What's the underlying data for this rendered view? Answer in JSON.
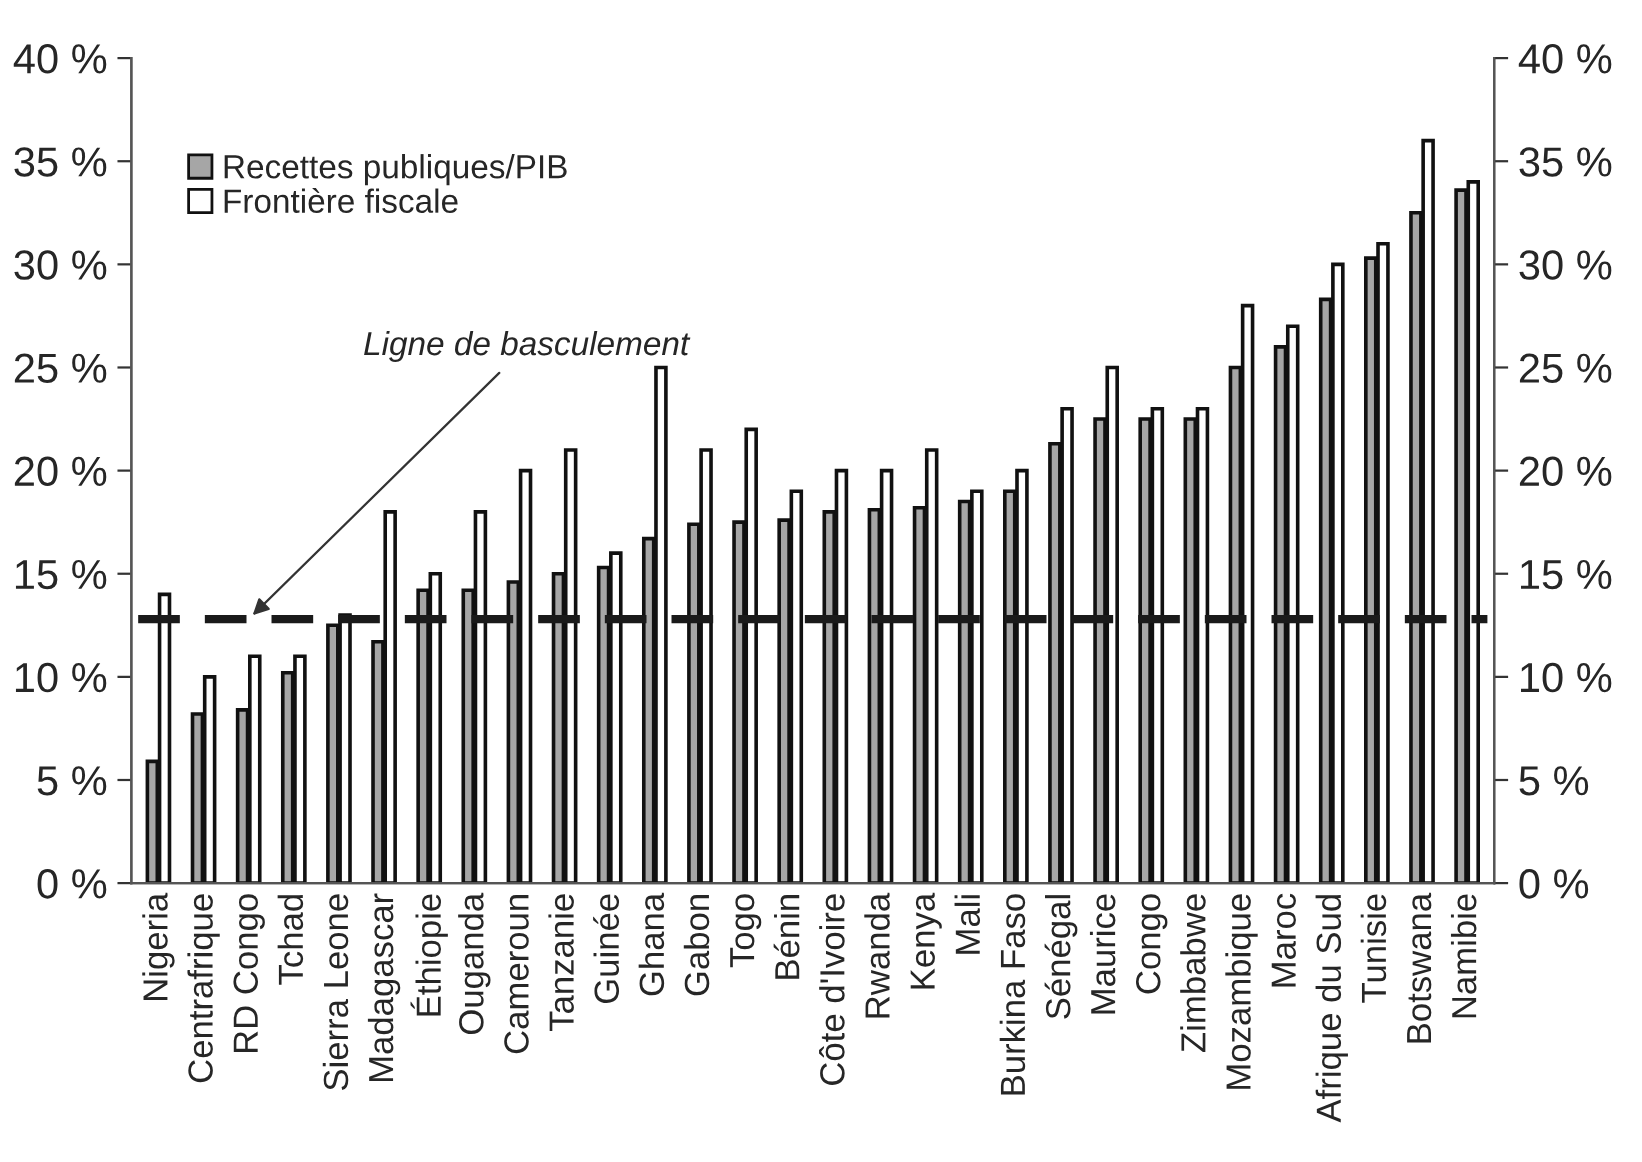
{
  "chart_data": {
    "type": "bar",
    "categories": [
      "Nigeria",
      "Centrafrique",
      "RD Congo",
      "Tchad",
      "Sierra Leone",
      "Madagascar",
      "Éthiopie",
      "Ouganda",
      "Cameroun",
      "Tanzanie",
      "Guinée",
      "Ghana",
      "Gabon",
      "Togo",
      "Bénin",
      "Côte d'Ivoire",
      "Rwanda",
      "Kenya",
      "Mali",
      "Burkina Faso",
      "Sénégal",
      "Maurice",
      "Congo",
      "Zimbabwe",
      "Mozambique",
      "Maroc",
      "Afrique du Sud",
      "Tunisie",
      "Botswana",
      "Namibie"
    ],
    "series": [
      {
        "name": "Recettes publiques/PIB",
        "color": "#a6a6a6",
        "values": [
          5.9,
          8.2,
          8.4,
          10.2,
          12.5,
          11.7,
          14.2,
          14.2,
          14.6,
          15,
          15.3,
          16.7,
          17.4,
          17.5,
          17.6,
          18,
          18.1,
          18.2,
          18.5,
          19,
          21.3,
          22.5,
          22.5,
          22.5,
          25,
          26,
          28.3,
          30.3,
          32.5,
          33.6
        ]
      },
      {
        "name": "Frontière fiscale",
        "color": "#ffffff",
        "values": [
          14,
          10,
          11,
          11,
          13,
          18,
          15,
          18,
          20,
          21,
          16,
          25,
          21,
          22,
          19,
          20,
          20,
          21,
          19,
          20,
          23,
          25,
          23,
          23,
          28,
          27,
          30,
          31,
          36,
          34
        ]
      }
    ],
    "ylim": [
      0,
      40
    ],
    "yticks": [
      {
        "value": 0,
        "label": "0 %"
      },
      {
        "value": 5,
        "label": "5 %"
      },
      {
        "value": 10,
        "label": "10 %"
      },
      {
        "value": 15,
        "label": "15 %"
      },
      {
        "value": 20,
        "label": "20 %"
      },
      {
        "value": 25,
        "label": "25 %"
      },
      {
        "value": 30,
        "label": "30 %"
      },
      {
        "value": 35,
        "label": "35 %"
      },
      {
        "value": 40,
        "label": "40 %"
      }
    ],
    "y2lim": [
      0,
      40
    ],
    "y2ticks": [
      {
        "value": 0,
        "label": "0 %"
      },
      {
        "value": 5,
        "label": "5 %"
      },
      {
        "value": 10,
        "label": "10 %"
      },
      {
        "value": 15,
        "label": "15 %"
      },
      {
        "value": 20,
        "label": "20 %"
      },
      {
        "value": 25,
        "label": "25 %"
      },
      {
        "value": 30,
        "label": "30 %"
      },
      {
        "value": 35,
        "label": "35 %"
      },
      {
        "value": 40,
        "label": "40 %"
      }
    ],
    "ref_lines": [
      {
        "axis": "y",
        "value": 12.8,
        "color": "#1a1a1a",
        "line_style": "dashed"
      }
    ],
    "annotations": [
      {
        "text": "Ligne de basculement",
        "x": "RD Congo",
        "y": 12.8
      }
    ],
    "legend": "top left",
    "grid": false
  }
}
